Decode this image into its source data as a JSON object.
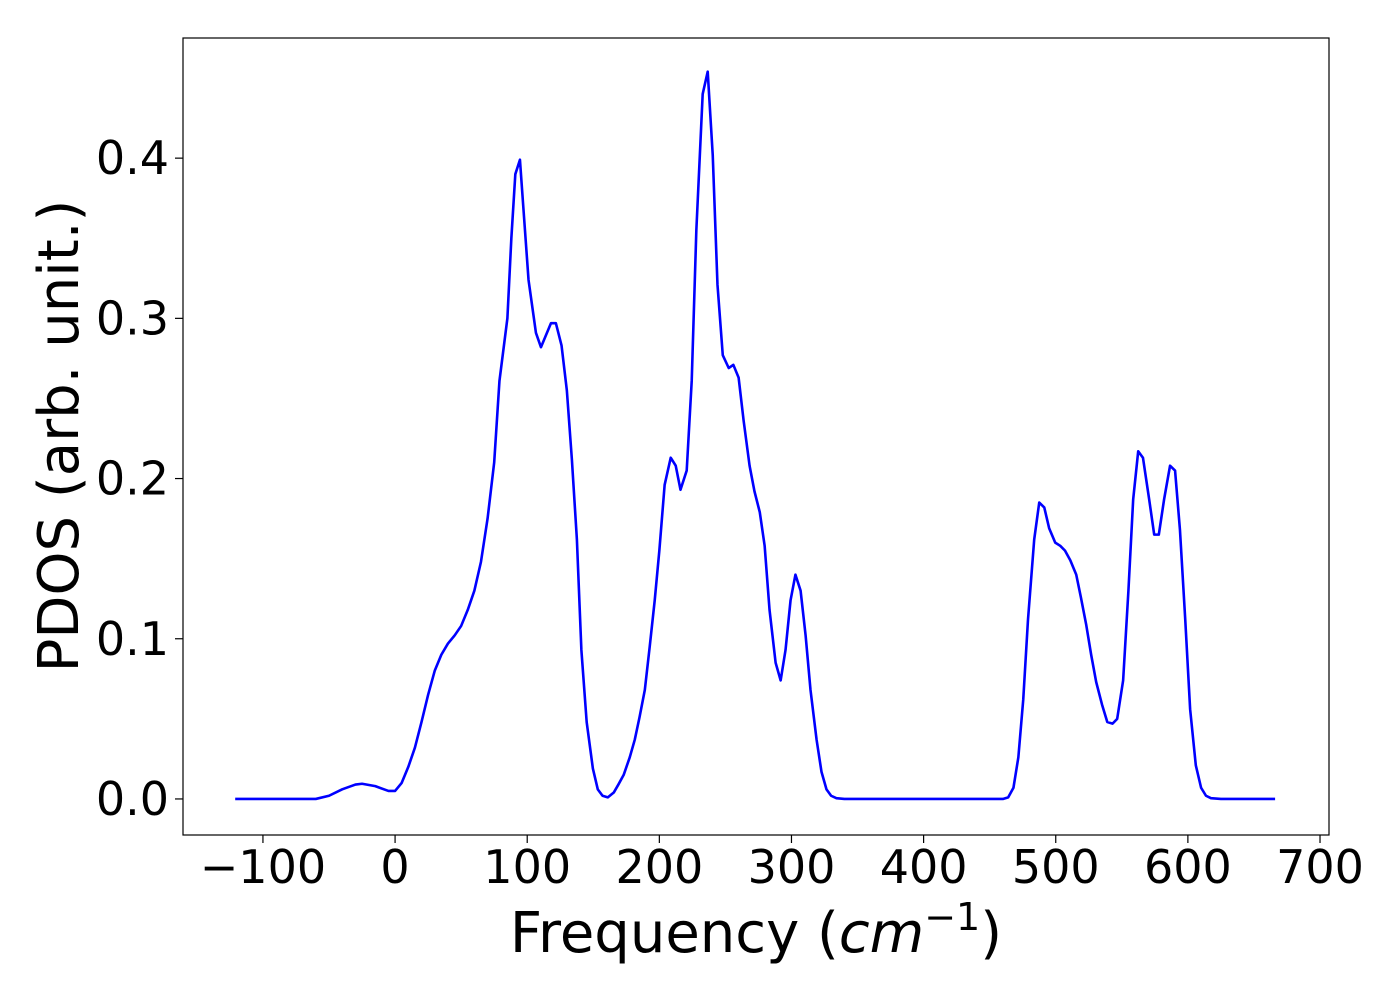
{
  "chart_data": {
    "type": "line",
    "xlabel": [
      "Frequency (",
      "cm",
      "−1",
      ")"
    ],
    "ylabel": "PDOS (arb. unit.)",
    "color": "#0000ff",
    "xlim": [
      -160.5,
      706.8
    ],
    "ylim": [
      -0.0225,
      0.475
    ],
    "xticks": [
      {
        "value": -100,
        "label": "−100"
      },
      0,
      100,
      200,
      300,
      400,
      500,
      600,
      700
    ],
    "yticks": [
      {
        "value": 0,
        "label": "0.0"
      },
      0.1,
      0.2,
      0.3,
      0.4
    ],
    "x": [
      -121,
      -60,
      -50,
      -40,
      -30,
      -25,
      -15,
      -5,
      0,
      5,
      10,
      15,
      20,
      25,
      30,
      35,
      40,
      45,
      50,
      55,
      60,
      65,
      70,
      75,
      79,
      85,
      88,
      91,
      94.5,
      97,
      101,
      106.6,
      110.4,
      118,
      121.7,
      126,
      130,
      133.8,
      137.6,
      141,
      145,
      149.7,
      153.4,
      157,
      161,
      165.5,
      169,
      173,
      177.6,
      181.4,
      185,
      189,
      192.7,
      196.5,
      200,
      204,
      208.6,
      212.4,
      216,
      220.7,
      224.5,
      228,
      232.8,
      236.6,
      240.4,
      244,
      248,
      252.5,
      256,
      260,
      263.8,
      268.3,
      272,
      276,
      279.7,
      283.4,
      288,
      291.8,
      295.5,
      299.3,
      303,
      306.9,
      310.7,
      314.4,
      319,
      322.7,
      326.5,
      330,
      334,
      340,
      460,
      464,
      468,
      471.7,
      475.4,
      479,
      483.7,
      487.5,
      491.3,
      495,
      499.6,
      503.4,
      507,
      511,
      515.5,
      519,
      523,
      526.8,
      530.6,
      535,
      539,
      543,
      546.5,
      551,
      555,
      558.6,
      562.4,
      566,
      570.7,
      574.5,
      578,
      582,
      586.5,
      590.3,
      594,
      598,
      601.7,
      606,
      610,
      613.7,
      617.5,
      625,
      666
    ],
    "values": [
      0,
      0,
      0.002,
      0.006,
      0.009,
      0.0095,
      0.008,
      0.005,
      0.005,
      0.01,
      0.02,
      0.032,
      0.048,
      0.065,
      0.08,
      0.09,
      0.097,
      0.102,
      0.108,
      0.118,
      0.13,
      0.148,
      0.175,
      0.21,
      0.261,
      0.3,
      0.35,
      0.39,
      0.399,
      0.37,
      0.324,
      0.291,
      0.282,
      0.297,
      0.297,
      0.283,
      0.255,
      0.212,
      0.162,
      0.093,
      0.048,
      0.019,
      0.006,
      0.002,
      0.001,
      0.004,
      0.009,
      0.015,
      0.026,
      0.037,
      0.051,
      0.068,
      0.095,
      0.124,
      0.155,
      0.196,
      0.213,
      0.208,
      0.193,
      0.205,
      0.261,
      0.355,
      0.44,
      0.454,
      0.402,
      0.321,
      0.277,
      0.269,
      0.271,
      0.263,
      0.236,
      0.208,
      0.192,
      0.179,
      0.158,
      0.118,
      0.085,
      0.074,
      0.093,
      0.124,
      0.14,
      0.13,
      0.102,
      0.068,
      0.037,
      0.017,
      0.006,
      0.002,
      0.0005,
      0,
      0,
      0.001,
      0.007,
      0.026,
      0.062,
      0.112,
      0.162,
      0.185,
      0.182,
      0.169,
      0.16,
      0.158,
      0.155,
      0.149,
      0.14,
      0.126,
      0.109,
      0.09,
      0.073,
      0.059,
      0.048,
      0.047,
      0.05,
      0.074,
      0.13,
      0.187,
      0.217,
      0.213,
      0.187,
      0.165,
      0.165,
      0.187,
      0.208,
      0.205,
      0.168,
      0.112,
      0.056,
      0.021,
      0.007,
      0.002,
      0.0005,
      0,
      0
    ]
  }
}
